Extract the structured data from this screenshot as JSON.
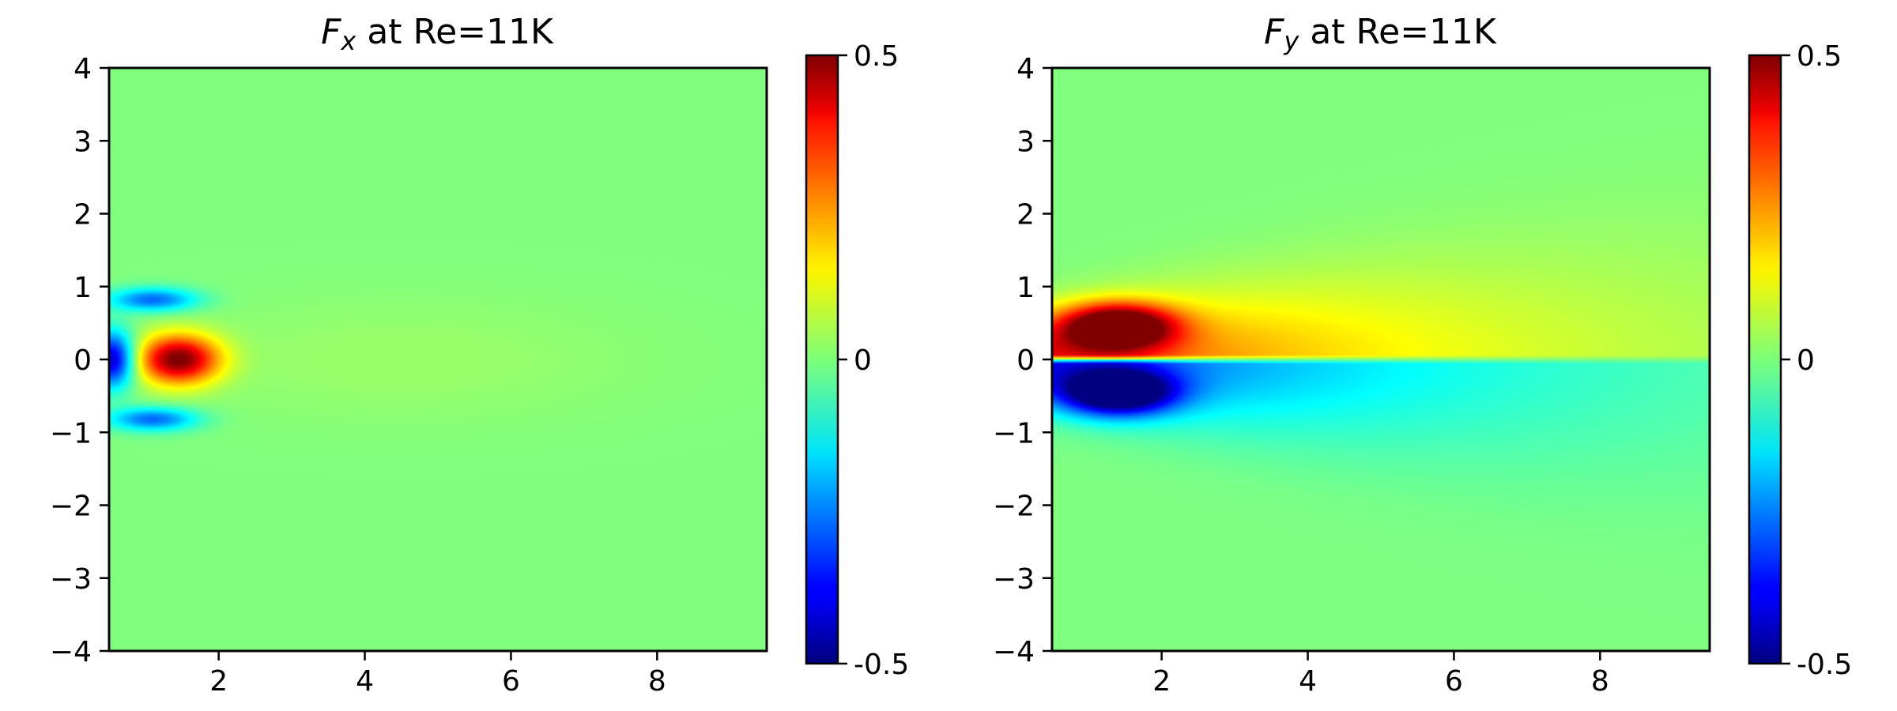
{
  "chart_data": [
    {
      "type": "heatmap",
      "title_symbol": "F",
      "title_subscript": "x",
      "title_rest": " at Re=11K",
      "xlim": [
        0.5,
        9.5
      ],
      "ylim": [
        -4,
        4
      ],
      "x_ticks": [
        2,
        4,
        6,
        8
      ],
      "y_ticks": [
        -4,
        -3,
        -2,
        -1,
        0,
        1,
        2,
        3,
        4
      ],
      "x_tick_labels": [
        "2",
        "4",
        "6",
        "8"
      ],
      "y_tick_labels": [
        "−4",
        "−3",
        "−2",
        "−1",
        "0",
        "1",
        "2",
        "3",
        "4"
      ],
      "colorbar": {
        "min": -0.5,
        "max": 0.5,
        "ticks": [
          0.5,
          0,
          -0.5
        ],
        "tick_labels": [
          "0.5",
          "0",
          "-0.5"
        ],
        "colormap": "jet"
      },
      "field_features": [
        {
          "kind": "blob",
          "x": 0.55,
          "y": 0.0,
          "sx": 0.3,
          "sy": 0.38,
          "value": -0.9
        },
        {
          "kind": "blob",
          "x": 1.45,
          "y": 0.0,
          "sx": 0.55,
          "sy": 0.33,
          "value": 1.0
        },
        {
          "kind": "blob",
          "x": 1.1,
          "y": 0.82,
          "sx": 0.6,
          "sy": 0.16,
          "value": -0.55
        },
        {
          "kind": "blob",
          "x": 1.1,
          "y": -0.82,
          "sx": 0.6,
          "sy": 0.16,
          "value": -0.55
        },
        {
          "kind": "blob",
          "x": 4.5,
          "y": 0.0,
          "sx": 3.5,
          "sy": 0.9,
          "value": 0.05
        }
      ]
    },
    {
      "type": "heatmap",
      "title_symbol": "F",
      "title_subscript": "y",
      "title_rest": " at Re=11K",
      "xlim": [
        0.5,
        9.5
      ],
      "ylim": [
        -4,
        4
      ],
      "x_ticks": [
        2,
        4,
        6,
        8
      ],
      "y_ticks": [
        -4,
        -3,
        -2,
        -1,
        0,
        1,
        2,
        3,
        4
      ],
      "x_tick_labels": [
        "2",
        "4",
        "6",
        "8"
      ],
      "y_tick_labels": [
        "−4",
        "−3",
        "−2",
        "−1",
        "0",
        "1",
        "2",
        "3",
        "4"
      ],
      "colorbar": {
        "min": -0.5,
        "max": 0.5,
        "ticks": [
          0.5,
          0,
          -0.5
        ],
        "tick_labels": [
          "0.5",
          "0",
          "-0.5"
        ],
        "colormap": "jet"
      },
      "field_features": [
        {
          "kind": "antisym_wake",
          "x_peak": 1.4,
          "y_center": 0.45,
          "amp": 1.0,
          "decay_x": 4.5,
          "spread_y": 0.6
        }
      ]
    }
  ]
}
